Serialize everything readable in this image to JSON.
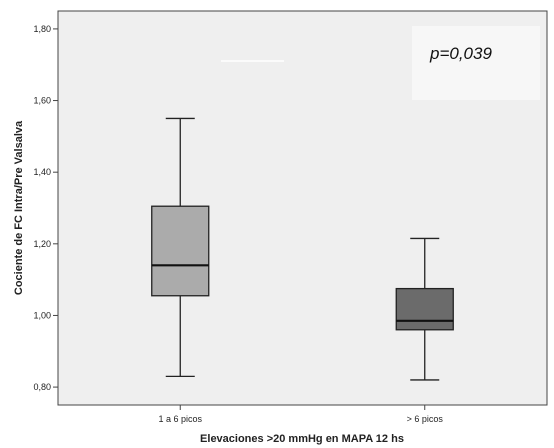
{
  "chart_data": {
    "type": "boxplot",
    "xlabel": "Elevaciones >20 mmHg en MAPA 12 hs",
    "ylabel": "Cociente de FC Intra/Pre Valsalva",
    "ylim": [
      0.75,
      1.85
    ],
    "yticks": [
      "0,80",
      "1,00",
      "1,20",
      "1,40",
      "1,60",
      "1,80"
    ],
    "ytick_values": [
      0.8,
      1.0,
      1.2,
      1.4,
      1.6,
      1.8
    ],
    "categories": [
      "1 a 6 picos",
      "> 6 picos"
    ],
    "boxes": [
      {
        "category": "1 a 6 picos",
        "min": 0.83,
        "q1": 1.055,
        "median": 1.14,
        "q3": 1.305,
        "max": 1.55,
        "color": "#ababab"
      },
      {
        "category": "> 6 picos",
        "min": 0.82,
        "q1": 0.96,
        "median": 0.985,
        "q3": 1.075,
        "max": 1.215,
        "color": "#6b6b6b"
      }
    ],
    "annotation": "p=0,039",
    "grid": false,
    "legend": "none",
    "plot_background": "#efefef"
  }
}
